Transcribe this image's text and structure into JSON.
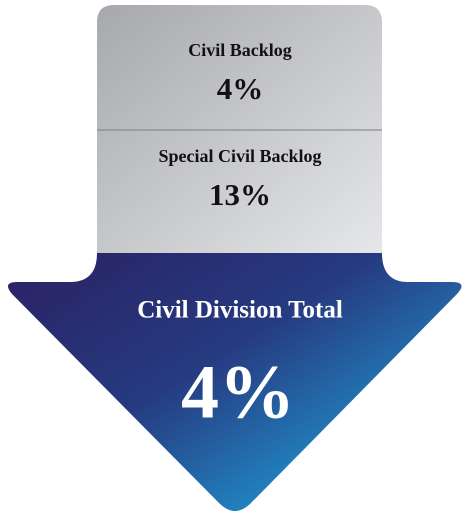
{
  "panels": [
    {
      "label": "Civil Backlog",
      "value": "4%"
    },
    {
      "label": "Special Civil Backlog",
      "value": "13%"
    }
  ],
  "total": {
    "label": "Civil Division Total",
    "value": "4%"
  }
}
